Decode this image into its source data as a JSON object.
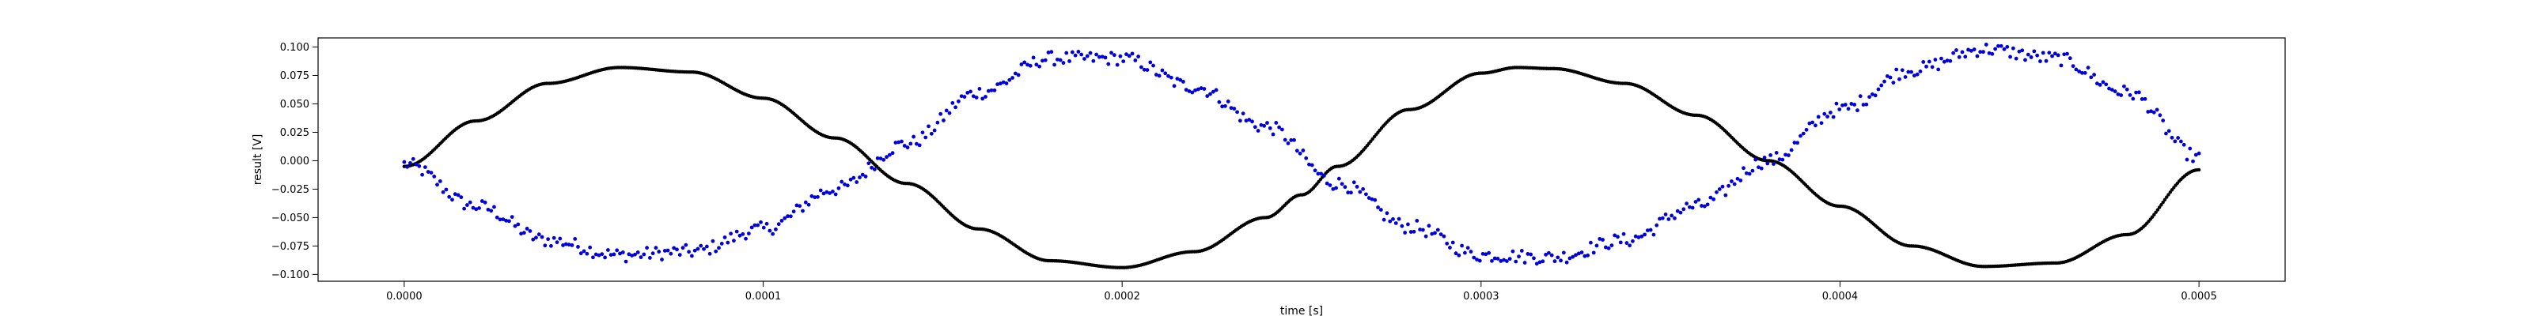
{
  "chart_data": {
    "type": "scatter",
    "xlabel": "time [s]",
    "ylabel": "result [V]",
    "xlim": [
      -2.4e-05,
      0.000524
    ],
    "ylim": [
      -0.106,
      0.108
    ],
    "xticks": [
      0.0,
      0.0001,
      0.0002,
      0.0003,
      0.0004,
      0.0005
    ],
    "xtick_labels": [
      "0.0000",
      "0.0001",
      "0.0002",
      "0.0003",
      "0.0004",
      "0.0005"
    ],
    "yticks": [
      -0.1,
      -0.075,
      -0.05,
      -0.025,
      0.0,
      0.025,
      0.05,
      0.075,
      0.1
    ],
    "ytick_labels": [
      "−0.100",
      "−0.075",
      "−0.050",
      "−0.025",
      "0.000",
      "0.025",
      "0.050",
      "0.075",
      "0.100"
    ],
    "grid": false,
    "legend": "none",
    "series": [
      {
        "color": "#000000",
        "marker": "dot",
        "point_count": 1000,
        "x_range": [
          0.0,
          0.0005
        ],
        "description": "sinusoid, period 0.00025 s",
        "points": [
          [
            0.0,
            -0.005
          ],
          [
            2e-05,
            0.035
          ],
          [
            4e-05,
            0.068
          ],
          [
            6e-05,
            0.082
          ],
          [
            8e-05,
            0.078
          ],
          [
            0.0001,
            0.055
          ],
          [
            0.00012,
            0.02
          ],
          [
            0.00014,
            -0.02
          ],
          [
            0.00016,
            -0.06
          ],
          [
            0.00018,
            -0.088
          ],
          [
            0.0002,
            -0.094
          ],
          [
            0.00022,
            -0.08
          ],
          [
            0.00024,
            -0.05
          ],
          [
            0.00025,
            -0.03
          ],
          [
            0.00026,
            -0.005
          ],
          [
            0.00028,
            0.045
          ],
          [
            0.0003,
            0.077
          ],
          [
            0.00031,
            0.082
          ],
          [
            0.00032,
            0.081
          ],
          [
            0.00034,
            0.068
          ],
          [
            0.00036,
            0.04
          ],
          [
            0.00038,
            0.0
          ],
          [
            0.0004,
            -0.04
          ],
          [
            0.00042,
            -0.075
          ],
          [
            0.00044,
            -0.093
          ],
          [
            0.00046,
            -0.09
          ],
          [
            0.00048,
            -0.065
          ],
          [
            0.0005,
            -0.008
          ]
        ]
      },
      {
        "color": "#0000dd",
        "marker": "dot",
        "point_count": 600,
        "x_range": [
          0.0,
          0.0005
        ],
        "description": "noisy sinusoid, period 0.00025 s, opposite phase",
        "points": [
          [
            0.0,
            -0.003
          ],
          [
            2e-05,
            -0.04
          ],
          [
            4e-05,
            -0.07
          ],
          [
            6e-05,
            -0.083
          ],
          [
            8e-05,
            -0.08
          ],
          [
            0.0001,
            -0.06
          ],
          [
            0.00012,
            -0.025
          ],
          [
            0.00014,
            0.015
          ],
          [
            0.00016,
            0.06
          ],
          [
            0.00018,
            0.09
          ],
          [
            0.0002,
            0.09
          ],
          [
            0.00022,
            0.065
          ],
          [
            0.00024,
            0.03
          ],
          [
            0.00026,
            -0.02
          ],
          [
            0.00028,
            -0.058
          ],
          [
            0.0003,
            -0.083
          ],
          [
            0.00032,
            -0.085
          ],
          [
            0.00034,
            -0.07
          ],
          [
            0.00036,
            -0.04
          ],
          [
            0.00038,
            0.0
          ],
          [
            0.0004,
            0.045
          ],
          [
            0.00042,
            0.08
          ],
          [
            0.00044,
            0.098
          ],
          [
            0.00046,
            0.09
          ],
          [
            0.00048,
            0.06
          ],
          [
            0.0005,
            0.003
          ]
        ]
      }
    ]
  }
}
